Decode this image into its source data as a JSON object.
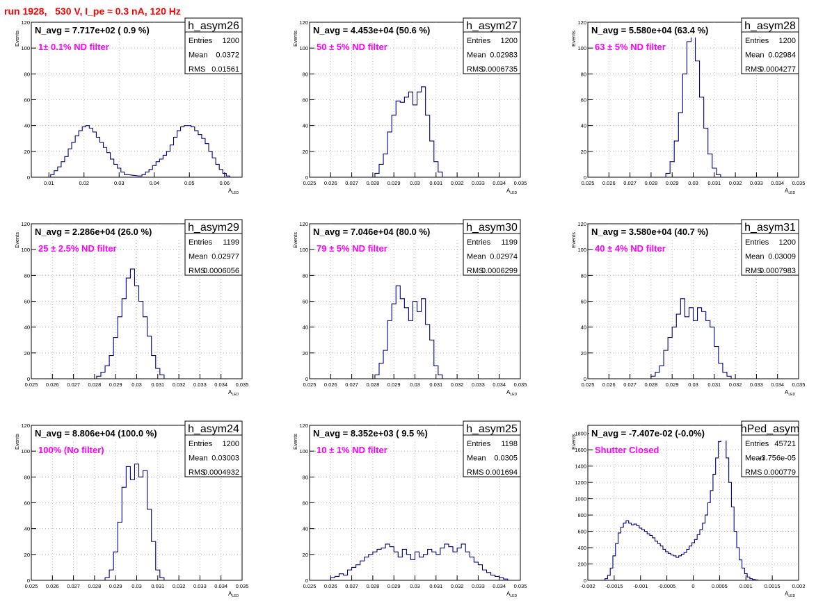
{
  "run_title": "run 1928,   530 V, I_pe ≈ 0.3 nA, 120 Hz",
  "colors": {
    "title": "#ff0000",
    "filter_label": "#ff00ff",
    "histogram": "#000080",
    "grid": "#aaaaaa"
  },
  "stats_labels": {
    "entries": "Entries",
    "mean": "Mean",
    "rms": "RMS"
  },
  "y_axis_label": "Events",
  "x_axis_label": "A",
  "x_axis_subscript": "LED",
  "chart_data": [
    {
      "type": "histogram",
      "name": "h_asym26",
      "n_avg": "N_avg = 7.717e+02 ( 0.9 %)",
      "filter": "1± 0.1% ND filter",
      "entries": "1200",
      "mean": "0.0372",
      "rms": "0.01561",
      "xlim": [
        0.005,
        0.065
      ],
      "ylim": [
        0,
        120
      ],
      "xticks": [
        0.01,
        0.02,
        0.03,
        0.04,
        0.05,
        0.06
      ],
      "xtick_labels": [
        "0.01",
        "0.02",
        "0.03",
        "0.04",
        "0.05",
        "0.06"
      ],
      "yticks": [
        0,
        20,
        40,
        60,
        80,
        100,
        120
      ],
      "x": [
        0.011,
        0.012,
        0.013,
        0.014,
        0.015,
        0.016,
        0.017,
        0.018,
        0.019,
        0.02,
        0.021,
        0.022,
        0.023,
        0.024,
        0.025,
        0.026,
        0.027,
        0.028,
        0.029,
        0.03,
        0.031,
        0.032,
        0.036,
        0.037,
        0.038,
        0.039,
        0.04,
        0.041,
        0.042,
        0.043,
        0.044,
        0.045,
        0.046,
        0.047,
        0.048,
        0.049,
        0.05,
        0.051,
        0.052,
        0.053,
        0.054,
        0.055,
        0.056,
        0.057,
        0.058,
        0.059,
        0.06,
        0.061
      ],
      "values": [
        2,
        5,
        8,
        12,
        16,
        22,
        27,
        32,
        36,
        39,
        40,
        38,
        35,
        31,
        27,
        23,
        19,
        14,
        10,
        7,
        4,
        2,
        1,
        2,
        4,
        6,
        9,
        12,
        14,
        17,
        20,
        25,
        31,
        36,
        39,
        40,
        40,
        39,
        36,
        33,
        30,
        26,
        20,
        15,
        10,
        6,
        3,
        1
      ]
    },
    {
      "type": "histogram",
      "name": "h_asym27",
      "n_avg": "N_avg = 4.453e+04 (50.6 %)",
      "filter": "50 ± 5% ND filter",
      "entries": "1200",
      "mean": "0.02983",
      "rms": "0.0006735",
      "xlim": [
        0.025,
        0.035
      ],
      "ylim": [
        0,
        120
      ],
      "xticks": [
        0.025,
        0.026,
        0.027,
        0.028,
        0.029,
        0.03,
        0.031,
        0.032,
        0.033,
        0.034,
        0.035
      ],
      "xtick_labels": [
        "0.025",
        "0.026",
        "0.027",
        "0.028",
        "0.029",
        "0.03",
        "0.031",
        "0.032",
        "0.033",
        "0.034",
        "0.035"
      ],
      "yticks": [
        0,
        20,
        40,
        60,
        80,
        100,
        120
      ],
      "x": [
        0.0282,
        0.0284,
        0.0286,
        0.0288,
        0.029,
        0.0292,
        0.0294,
        0.0296,
        0.0298,
        0.03,
        0.0302,
        0.0304,
        0.0306,
        0.0308,
        0.031,
        0.0312
      ],
      "values": [
        3,
        10,
        18,
        35,
        48,
        59,
        58,
        62,
        66,
        56,
        66,
        70,
        48,
        28,
        12,
        4
      ]
    },
    {
      "type": "histogram",
      "name": "h_asym28",
      "n_avg": "N_avg = 5.580e+04 (63.4 %)",
      "filter": "63 ± 5% ND filter",
      "entries": "1200",
      "mean": "0.02984",
      "rms": "0.0004277",
      "xlim": [
        0.025,
        0.035
      ],
      "ylim": [
        0,
        120
      ],
      "xticks": [
        0.025,
        0.026,
        0.027,
        0.028,
        0.029,
        0.03,
        0.031,
        0.032,
        0.033,
        0.034,
        0.035
      ],
      "xtick_labels": [
        "0.025",
        "0.026",
        "0.027",
        "0.028",
        "0.029",
        "0.03",
        "0.031",
        "0.032",
        "0.033",
        "0.034",
        "0.035"
      ],
      "yticks": [
        0,
        20,
        40,
        60,
        80,
        100,
        120
      ],
      "x": [
        0.0288,
        0.029,
        0.0292,
        0.0294,
        0.0296,
        0.0298,
        0.03,
        0.0302,
        0.0304,
        0.0306,
        0.0308,
        0.031,
        0.0312
      ],
      "values": [
        3,
        12,
        28,
        50,
        80,
        105,
        110,
        90,
        62,
        38,
        18,
        7,
        2
      ]
    },
    {
      "type": "histogram",
      "name": "h_asym29",
      "n_avg": "N_avg = 2.286e+04 (26.0 %)",
      "filter": "25 ± 2.5% ND filter",
      "entries": "1199",
      "mean": "0.02977",
      "rms": "0.0006056",
      "xlim": [
        0.025,
        0.035
      ],
      "ylim": [
        0,
        120
      ],
      "xticks": [
        0.025,
        0.026,
        0.027,
        0.028,
        0.029,
        0.03,
        0.031,
        0.032,
        0.033,
        0.034,
        0.035
      ],
      "xtick_labels": [
        "0.025",
        "0.026",
        "0.027",
        "0.028",
        "0.029",
        "0.03",
        "0.031",
        "0.032",
        "0.033",
        "0.034",
        "0.035"
      ],
      "yticks": [
        0,
        20,
        40,
        60,
        80,
        100,
        120
      ],
      "x": [
        0.0282,
        0.0284,
        0.0286,
        0.0288,
        0.029,
        0.0292,
        0.0294,
        0.0296,
        0.0298,
        0.03,
        0.0302,
        0.0304,
        0.0306,
        0.0308,
        0.031,
        0.0312
      ],
      "values": [
        2,
        5,
        10,
        18,
        32,
        48,
        62,
        78,
        85,
        72,
        60,
        48,
        33,
        18,
        8,
        3
      ]
    },
    {
      "type": "histogram",
      "name": "h_asym30",
      "n_avg": "N_avg = 7.046e+04 (80.0 %)",
      "filter": "79 ± 5% ND filter",
      "entries": "1199",
      "mean": "0.02974",
      "rms": "0.0006299",
      "xlim": [
        0.025,
        0.035
      ],
      "ylim": [
        0,
        120
      ],
      "xticks": [
        0.025,
        0.026,
        0.027,
        0.028,
        0.029,
        0.03,
        0.031,
        0.032,
        0.033,
        0.034,
        0.035
      ],
      "xtick_labels": [
        "0.025",
        "0.026",
        "0.027",
        "0.028",
        "0.029",
        "0.03",
        "0.031",
        "0.032",
        "0.033",
        "0.034",
        "0.035"
      ],
      "yticks": [
        0,
        20,
        40,
        60,
        80,
        100,
        120
      ],
      "x": [
        0.0282,
        0.0284,
        0.0286,
        0.0288,
        0.029,
        0.0292,
        0.0294,
        0.0296,
        0.0298,
        0.03,
        0.0302,
        0.0304,
        0.0306,
        0.0308,
        0.031,
        0.0312
      ],
      "values": [
        3,
        12,
        22,
        45,
        58,
        72,
        62,
        55,
        45,
        60,
        52,
        62,
        42,
        30,
        10,
        3
      ]
    },
    {
      "type": "histogram",
      "name": "h_asym31",
      "n_avg": "N_avg = 3.580e+04 (40.7 %)",
      "filter": "40 ± 4% ND filter",
      "entries": "1200",
      "mean": "0.03009",
      "rms": "0.0007983",
      "xlim": [
        0.025,
        0.035
      ],
      "ylim": [
        0,
        120
      ],
      "xticks": [
        0.025,
        0.026,
        0.027,
        0.028,
        0.029,
        0.03,
        0.031,
        0.032,
        0.033,
        0.034,
        0.035
      ],
      "xtick_labels": [
        "0.025",
        "0.026",
        "0.027",
        "0.028",
        "0.029",
        "0.03",
        "0.031",
        "0.032",
        "0.033",
        "0.034",
        "0.035"
      ],
      "yticks": [
        0,
        20,
        40,
        60,
        80,
        100,
        120
      ],
      "x": [
        0.0281,
        0.0283,
        0.0285,
        0.0287,
        0.0289,
        0.0291,
        0.0293,
        0.0295,
        0.0297,
        0.0299,
        0.0301,
        0.0303,
        0.0305,
        0.0307,
        0.0309,
        0.0311,
        0.0313,
        0.0315,
        0.0317
      ],
      "values": [
        2,
        5,
        10,
        22,
        32,
        40,
        50,
        62,
        48,
        55,
        45,
        55,
        52,
        45,
        40,
        25,
        12,
        5,
        2
      ]
    },
    {
      "type": "histogram",
      "name": "h_asym24",
      "n_avg": "N_avg = 8.806e+04 (100.0 %)",
      "filter": "100% (No filter)",
      "entries": "1200",
      "mean": "0.03003",
      "rms": "0.0004932",
      "xlim": [
        0.025,
        0.035
      ],
      "ylim": [
        0,
        120
      ],
      "xticks": [
        0.025,
        0.026,
        0.027,
        0.028,
        0.029,
        0.03,
        0.031,
        0.032,
        0.033,
        0.034,
        0.035
      ],
      "xtick_labels": [
        "0.025",
        "0.026",
        "0.027",
        "0.028",
        "0.029",
        "0.03",
        "0.031",
        "0.032",
        "0.033",
        "0.034",
        "0.035"
      ],
      "yticks": [
        0,
        20,
        40,
        60,
        80,
        100,
        120
      ],
      "x": [
        0.0286,
        0.0288,
        0.029,
        0.0292,
        0.0294,
        0.0296,
        0.0298,
        0.03,
        0.0302,
        0.0304,
        0.0306,
        0.0308,
        0.031,
        0.0312
      ],
      "values": [
        2,
        8,
        22,
        45,
        72,
        88,
        78,
        90,
        80,
        85,
        55,
        30,
        8,
        2
      ]
    },
    {
      "type": "histogram",
      "name": "h_asym25",
      "n_avg": "N_avg = 8.352e+03 ( 9.5 %)",
      "filter": "10 ± 1% ND filter",
      "entries": "1198",
      "mean": "0.0305",
      "rms": "0.001694",
      "xlim": [
        0.025,
        0.035
      ],
      "ylim": [
        0,
        120
      ],
      "xticks": [
        0.025,
        0.026,
        0.027,
        0.028,
        0.029,
        0.03,
        0.031,
        0.032,
        0.033,
        0.034,
        0.035
      ],
      "xtick_labels": [
        "0.025",
        "0.026",
        "0.027",
        "0.028",
        "0.029",
        "0.03",
        "0.031",
        "0.032",
        "0.033",
        "0.034",
        "0.035"
      ],
      "yticks": [
        0,
        20,
        40,
        60,
        80,
        100,
        120
      ],
      "x": [
        0.0261,
        0.0263,
        0.0265,
        0.0267,
        0.0269,
        0.0271,
        0.0273,
        0.0275,
        0.0277,
        0.0279,
        0.0281,
        0.0283,
        0.0285,
        0.0287,
        0.0289,
        0.0291,
        0.0293,
        0.0295,
        0.0297,
        0.0299,
        0.0301,
        0.0303,
        0.0305,
        0.0307,
        0.0309,
        0.0311,
        0.0313,
        0.0315,
        0.0317,
        0.0319,
        0.0321,
        0.0323,
        0.0325,
        0.0327,
        0.0329,
        0.0331,
        0.0333,
        0.0335,
        0.0337,
        0.0339,
        0.0341,
        0.0343
      ],
      "values": [
        2,
        3,
        5,
        4,
        8,
        10,
        12,
        15,
        18,
        20,
        22,
        24,
        25,
        28,
        26,
        22,
        18,
        24,
        20,
        16,
        22,
        18,
        20,
        24,
        22,
        20,
        25,
        28,
        26,
        22,
        25,
        28,
        22,
        18,
        14,
        12,
        8,
        6,
        4,
        3,
        2,
        1
      ]
    },
    {
      "type": "histogram",
      "name": "hPed_asym",
      "n_avg": "N_avg = -7.407e-02 (-0.0%)",
      "filter": "Shutter Closed",
      "entries": "45721",
      "mean": "-3.756e-05",
      "rms": "0.000779",
      "xlim": [
        -0.002,
        0.002
      ],
      "ylim": [
        0,
        1900
      ],
      "xticks": [
        -0.002,
        -0.0015,
        -0.001,
        -0.0005,
        0,
        0.0005,
        0.001,
        0.0015,
        0.002
      ],
      "xtick_labels": [
        "-0.002",
        "-0.0015",
        "-0.001",
        "-0.0005",
        "0",
        "0.0005",
        "0.001",
        "0.0015",
        "0.002"
      ],
      "yticks": [
        0,
        200,
        400,
        600,
        800,
        1000,
        1200,
        1400,
        1600,
        1800
      ],
      "x": [
        -0.00165,
        -0.0016,
        -0.00155,
        -0.0015,
        -0.00145,
        -0.0014,
        -0.00135,
        -0.0013,
        -0.00125,
        -0.0012,
        -0.00115,
        -0.0011,
        -0.00105,
        -0.001,
        -0.00095,
        -0.0009,
        -0.00085,
        -0.0008,
        -0.00075,
        -0.0007,
        -0.00065,
        -0.0006,
        -0.00055,
        -0.0005,
        -0.00045,
        -0.0004,
        -0.00035,
        -0.0003,
        -0.00025,
        -0.0002,
        -0.00015,
        -0.0001,
        -5e-05,
        0,
        5e-05,
        0.0001,
        0.00015,
        0.0002,
        0.00025,
        0.0003,
        0.00035,
        0.0004,
        0.00045,
        0.0005,
        0.00055,
        0.0006,
        0.00065,
        0.0007,
        0.00075,
        0.0008,
        0.00085,
        0.0009,
        0.00095,
        0.001,
        0.00105,
        0.0011,
        0.00115,
        0.0012
      ],
      "values": [
        20,
        60,
        150,
        300,
        450,
        580,
        650,
        700,
        730,
        700,
        680,
        690,
        670,
        640,
        620,
        600,
        570,
        550,
        520,
        480,
        450,
        420,
        380,
        350,
        330,
        310,
        300,
        280,
        300,
        320,
        340,
        380,
        420,
        460,
        500,
        560,
        620,
        700,
        800,
        950,
        1100,
        1300,
        1500,
        1700,
        1800,
        1750,
        1500,
        1200,
        900,
        600,
        400,
        250,
        150,
        80,
        40,
        20,
        10,
        5
      ]
    }
  ]
}
